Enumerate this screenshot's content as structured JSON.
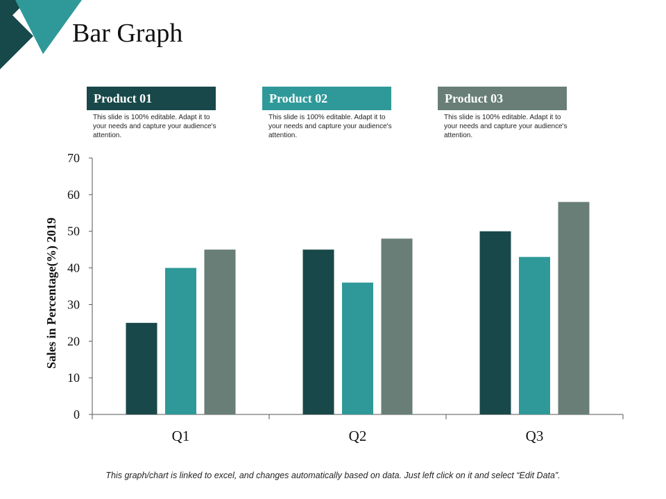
{
  "title": "Bar Graph",
  "legend": [
    {
      "label": "Product 01",
      "color": "#18484a",
      "description": "This slide is 100% editable.  Adapt it to your needs and capture your audience's attention."
    },
    {
      "label": "Product 02",
      "color": "#2f9999",
      "description": "This slide is 100% editable.  Adapt it to your needs and capture your audience's attention."
    },
    {
      "label": "Product 03",
      "color": "#687e76",
      "description": "This slide is 100% editable.  Adapt it to your needs and capture your audience's attention."
    }
  ],
  "chart_data": {
    "type": "bar",
    "title": "",
    "categories": [
      "Q1",
      "Q2",
      "Q3"
    ],
    "series": [
      {
        "name": "Product 01",
        "values": [
          25,
          45,
          50
        ]
      },
      {
        "name": "Product 02",
        "values": [
          40,
          36,
          43
        ]
      },
      {
        "name": "Product 03",
        "values": [
          45,
          48,
          58
        ]
      }
    ],
    "xlabel": "",
    "ylabel": "Sales in Percentage(%) 2019",
    "ylim": [
      0,
      70
    ],
    "yticks": [
      0,
      10,
      20,
      30,
      40,
      50,
      60,
      70
    ],
    "grid": false,
    "legend_placement": "top"
  },
  "footnote": "This graph/chart is linked to excel, and changes automatically based on data. Just left click on it and select “Edit Data”."
}
